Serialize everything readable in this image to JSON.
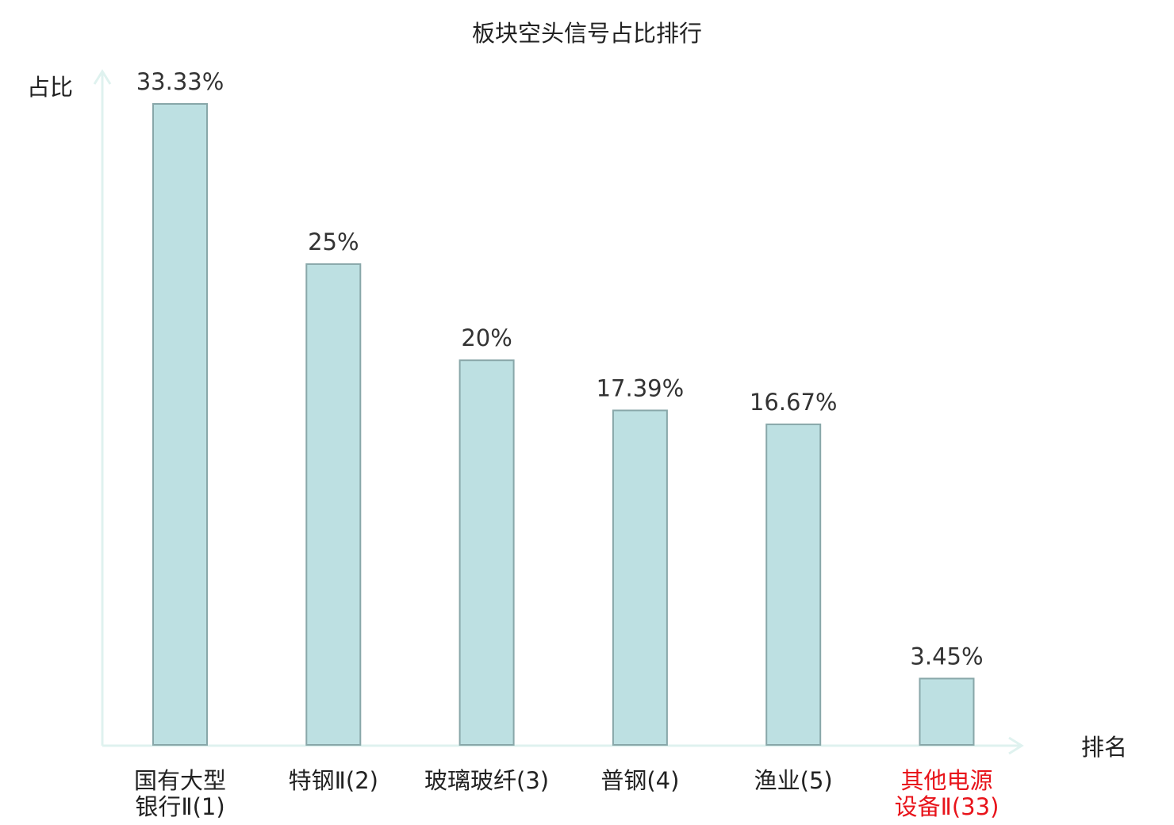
{
  "chart_data": {
    "type": "bar",
    "title": "板块空头信号占比排行",
    "ylabel": "占比",
    "xlabel": "排名",
    "ylim": [
      0,
      35
    ],
    "grid": false,
    "legend": "none",
    "categories": [
      {
        "lines": [
          "国有大型",
          "银行Ⅱ(1)"
        ],
        "highlight": false
      },
      {
        "lines": [
          "特钢Ⅱ(2)"
        ],
        "highlight": false
      },
      {
        "lines": [
          "玻璃玻纤(3)"
        ],
        "highlight": false
      },
      {
        "lines": [
          "普钢(4)"
        ],
        "highlight": false
      },
      {
        "lines": [
          "渔业(5)"
        ],
        "highlight": false
      },
      {
        "lines": [
          "其他电源",
          "设备Ⅱ(33)"
        ],
        "highlight": true
      }
    ],
    "values": [
      33.33,
      25,
      20,
      17.39,
      16.67,
      3.45
    ],
    "value_labels": [
      "33.33%",
      "25%",
      "20%",
      "17.39%",
      "16.67%",
      "3.45%"
    ],
    "colors": {
      "bar_fill": "#bde0e2",
      "bar_stroke": "#88a7a9",
      "axis": "#dff2ef",
      "text": "#222222",
      "highlight": "#e8141b"
    }
  }
}
